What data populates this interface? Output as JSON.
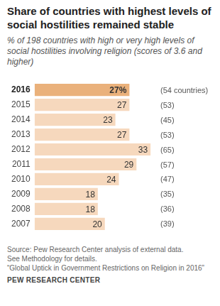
{
  "chart_data": {
    "type": "bar",
    "orientation": "horizontal",
    "title": "Share of countries with highest levels of social hostilities remained stable",
    "subtitle": "% of 198 countries with high or very high levels of social hostilities involving religion (scores of 3.6 and higher)",
    "categories": [
      "2016",
      "2015",
      "2014",
      "2013",
      "2012",
      "2011",
      "2010",
      "2009",
      "2008",
      "2007"
    ],
    "values": [
      27,
      27,
      23,
      27,
      33,
      29,
      24,
      18,
      18,
      20
    ],
    "value_labels": [
      "27%",
      "27",
      "23",
      "27",
      "33",
      "29",
      "24",
      "18",
      "18",
      "20"
    ],
    "count_labels": [
      "(54 countries)",
      "(53)",
      "(45)",
      "(53)",
      "(65)",
      "(57)",
      "(47)",
      "(35)",
      "(36)",
      "(39)"
    ],
    "colors": [
      "#eab17b",
      "#f6d8bd",
      "#f6d8bd",
      "#f6d8bd",
      "#f6d8bd",
      "#f6d8bd",
      "#f6d8bd",
      "#f6d8bd",
      "#f6d8bd",
      "#f6d8bd"
    ],
    "xlim": [
      0,
      35
    ],
    "data_labels": true,
    "tick_labels": "y",
    "grid": false,
    "source": [
      "Source: Pew Research Center analysis of external data.",
      "See Methodology for details.",
      "“Global Uptick in Government Restrictions on Religion in 2016”"
    ],
    "credit": "PEW RESEARCH CENTER"
  }
}
